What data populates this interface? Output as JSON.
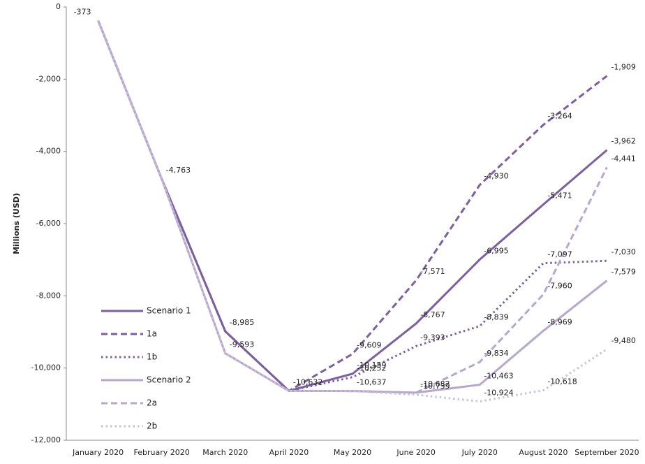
{
  "chart_data": {
    "type": "line",
    "y_label": "Millions (USD)",
    "categories": [
      "January 2020",
      "February 2020",
      "March 2020",
      "April 2020",
      "May 2020",
      "June 2020",
      "July 2020",
      "August 2020",
      "September 2020"
    ],
    "ylim": [
      -12000,
      0
    ],
    "yticks": [
      {
        "value": -12000,
        "label": "-12,000"
      },
      {
        "value": -10000,
        "label": "-10,000"
      },
      {
        "value": -8000,
        "label": "-8,000"
      },
      {
        "value": -6000,
        "label": "-6,000"
      },
      {
        "value": -4000,
        "label": "-4,000"
      },
      {
        "value": -2000,
        "label": "-2,000"
      },
      0
    ],
    "grid": false,
    "legend": "left",
    "series": [
      {
        "name": "Scenario 1",
        "color": "#7b5f9f",
        "style": "solid",
        "values": [
          -373,
          -4763,
          -8985,
          -10632,
          -10159,
          -8767,
          -6995,
          -5471,
          -3962
        ],
        "value_labels": [
          "-373",
          "-4,763",
          "-8,985",
          "-10,632",
          "-10,159",
          "-8,767",
          "-6,995",
          "-5,471",
          "-3,962"
        ]
      },
      {
        "name": "1a",
        "color": "#7b5f9f",
        "style": "dashed",
        "values": [
          -373,
          -4763,
          -8985,
          -10632,
          -9609,
          -7571,
          -4930,
          -3264,
          -1909
        ],
        "value_labels": [
          null,
          null,
          null,
          null,
          "-9,609",
          "-7,571",
          "-4,930",
          "-3,264",
          "-1,909"
        ]
      },
      {
        "name": "1b",
        "color": "#7b5f9f",
        "style": "dotted",
        "values": [
          -373,
          -4763,
          -8985,
          -10632,
          -10252,
          -9393,
          -8839,
          -7097,
          -7030
        ],
        "value_labels": [
          null,
          null,
          null,
          null,
          "-10,252",
          "-9,393",
          "-8,839",
          "-7,097",
          "-7,030"
        ]
      },
      {
        "name": "Scenario 2",
        "color": "#b6a7cc",
        "style": "solid",
        "values": [
          -373,
          -4763,
          -9593,
          -10632,
          -10637,
          -10682,
          -10463,
          -8969,
          -7579
        ],
        "value_labels": [
          null,
          null,
          "-9,593",
          null,
          "-10,637",
          "-10,682",
          "-10,463",
          "-8,969",
          "-7,579"
        ]
      },
      {
        "name": "2a",
        "color": "#b6a7cc",
        "style": "dashed",
        "values": [
          -373,
          -4763,
          -9593,
          -10632,
          -10637,
          -10682,
          -9834,
          -7960,
          -4441
        ],
        "value_labels": [
          null,
          null,
          null,
          null,
          null,
          null,
          "-9,834",
          "-7,960",
          "-4,441"
        ]
      },
      {
        "name": "2b",
        "color": "#c9bedb",
        "style": "dotted",
        "values": [
          -373,
          -4763,
          -9593,
          -10632,
          -10637,
          -10739,
          -10924,
          -10618,
          -9480
        ],
        "value_labels": [
          null,
          null,
          null,
          null,
          null,
          "-10,739",
          "-10,924",
          "-10,618",
          "-9,480"
        ]
      }
    ]
  }
}
